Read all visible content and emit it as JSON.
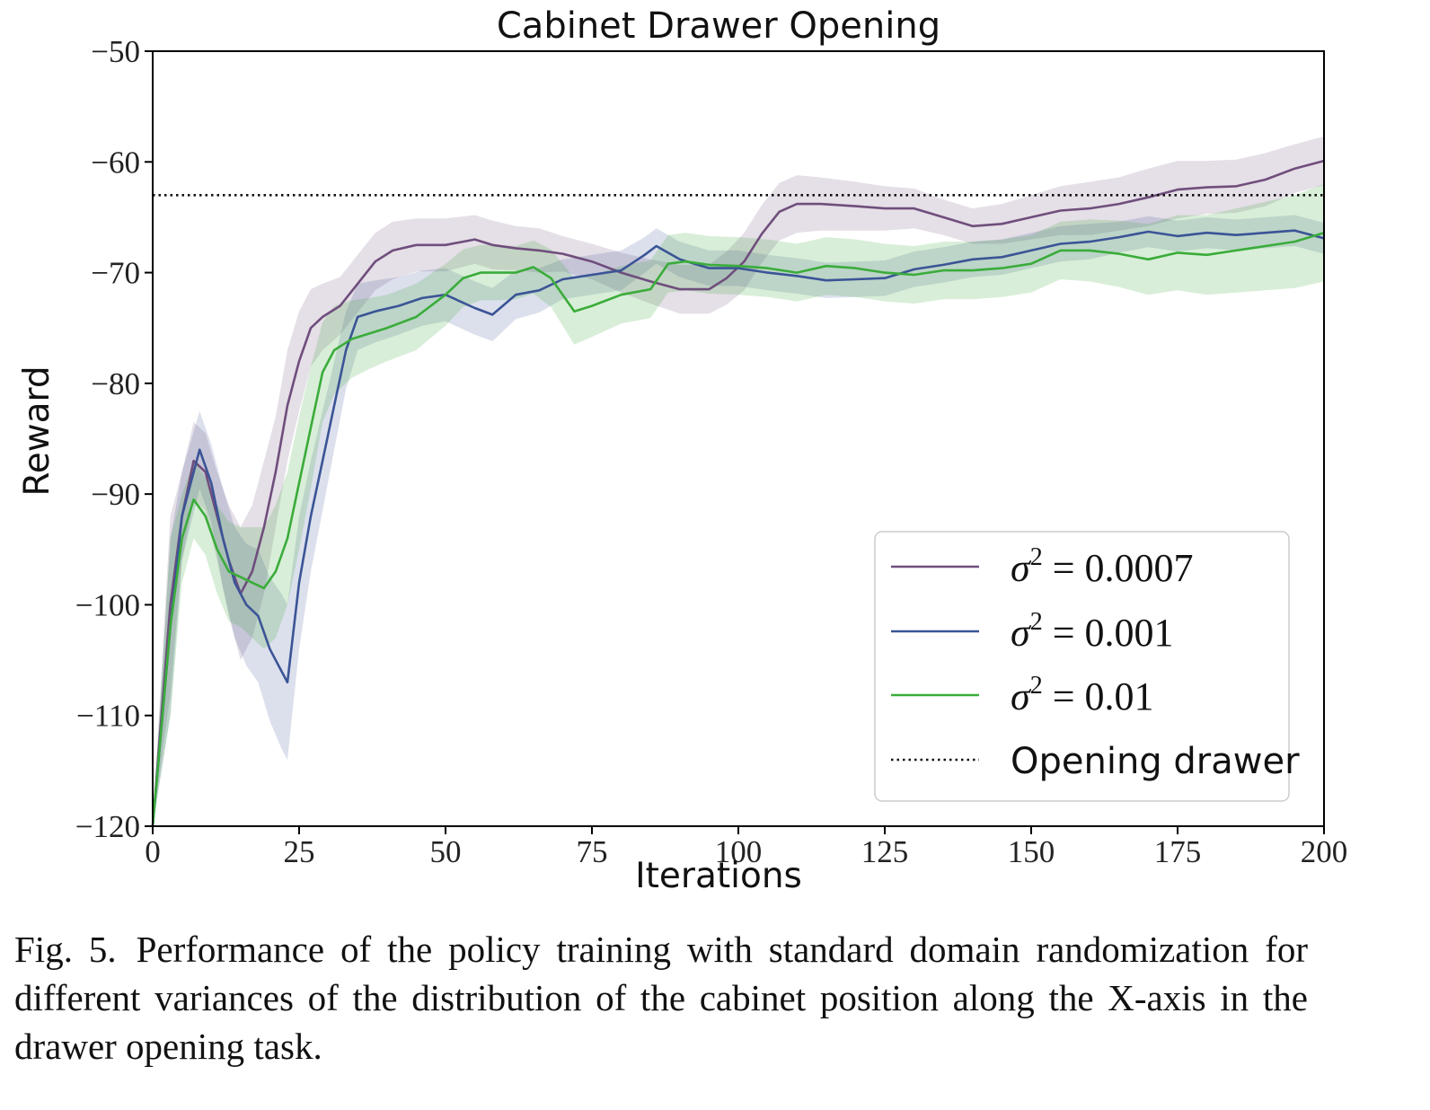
{
  "colors": {
    "series_0007": "#6f4e7c",
    "series_001": "#3b5496",
    "series_001_band": "#3b5496",
    "series_01": "#3aac3a",
    "reference": "#111111"
  },
  "caption": {
    "label": "Fig. 5.",
    "text": "Performance of the policy training with standard domain randomization for different variances of the distribution of the cabinet position along the X-axis in the drawer opening task."
  },
  "chart_data": {
    "type": "line",
    "title": "Cabinet Drawer Opening",
    "xlabel": "Iterations",
    "ylabel": "Reward",
    "xlim": [
      0,
      200
    ],
    "ylim": [
      -120,
      -50
    ],
    "xticks": [
      0,
      25,
      50,
      75,
      100,
      125,
      150,
      175,
      200
    ],
    "yticks": [
      -50,
      -60,
      -70,
      -80,
      -90,
      -100,
      -110,
      -120
    ],
    "ytick_labels": [
      "−50",
      "−60",
      "−70",
      "−80",
      "−90",
      "−100",
      "−110",
      "−120"
    ],
    "grid": false,
    "legend_position": "lower-right",
    "shaded_band": "spread around each series",
    "series": [
      {
        "name": "σ² = 0.0007",
        "legend_var": "σ",
        "legend_sup": "2",
        "legend_rest": " = 0.0007",
        "color_key": "series_0007",
        "x": [
          0,
          3,
          5,
          7,
          9,
          11,
          13,
          15,
          17,
          19,
          21,
          23,
          25,
          27,
          29,
          32,
          35,
          38,
          41,
          45,
          50,
          55,
          58,
          62,
          66,
          70,
          75,
          80,
          85,
          90,
          95,
          98,
          101,
          104,
          107,
          110,
          114,
          120,
          125,
          130,
          135,
          140,
          145,
          150,
          155,
          160,
          165,
          170,
          175,
          180,
          185,
          190,
          195,
          200
        ],
        "y": [
          -120,
          -100,
          -92,
          -87,
          -88,
          -92,
          -96,
          -99,
          -97,
          -93,
          -88,
          -82,
          -78,
          -75,
          -74,
          -73,
          -71,
          -69,
          -68,
          -67.5,
          -67.5,
          -67,
          -67.5,
          -67.8,
          -68,
          -68.3,
          -69,
          -70,
          -70.8,
          -71.5,
          -71.5,
          -70.5,
          -69,
          -66.5,
          -64.5,
          -63.8,
          -63.8,
          -64,
          -64.2,
          -64.2,
          -65,
          -65.8,
          -65.6,
          -65,
          -64.4,
          -64.2,
          -63.8,
          -63.2,
          -62.5,
          -62.3,
          -62.2,
          -61.6,
          -60.6,
          -59.9
        ],
        "spread": [
          0,
          8,
          4,
          3.5,
          3.5,
          4,
          5,
          6,
          6,
          6,
          5,
          5,
          4.5,
          3.5,
          3,
          2.6,
          2.6,
          2.6,
          2.6,
          2.4,
          2.4,
          2.2,
          2.2,
          2,
          2,
          1.6,
          1.6,
          1.8,
          2,
          2.2,
          2.2,
          2.4,
          2.6,
          2.6,
          2.6,
          2.6,
          2.4,
          2.2,
          2,
          1.8,
          1.6,
          1.6,
          1.8,
          2,
          2.2,
          2.4,
          2.4,
          2.6,
          2.6,
          2.4,
          2.4,
          2.4,
          2.2,
          2.2
        ]
      },
      {
        "name": "σ² = 0.001",
        "legend_var": "σ",
        "legend_sup": "2",
        "legend_rest": " = 0.001",
        "color_key": "series_001",
        "x": [
          0,
          3,
          5,
          8,
          10,
          12,
          14,
          16,
          18,
          20,
          22,
          23,
          25,
          27,
          29,
          31,
          33,
          35,
          38,
          42,
          46,
          50,
          55,
          58,
          62,
          66,
          70,
          75,
          80,
          84,
          86,
          90,
          95,
          100,
          105,
          110,
          115,
          120,
          125,
          130,
          135,
          140,
          145,
          150,
          155,
          160,
          165,
          170,
          175,
          180,
          185,
          190,
          195,
          200
        ],
        "y": [
          -120,
          -102,
          -92,
          -86,
          -89,
          -94,
          -98,
          -100,
          -101,
          -104,
          -106,
          -107,
          -98,
          -92,
          -87,
          -82,
          -77,
          -74,
          -73.5,
          -73,
          -72.3,
          -72,
          -73.2,
          -73.8,
          -72,
          -71.6,
          -70.6,
          -70.2,
          -69.8,
          -68.4,
          -67.6,
          -68.8,
          -69.6,
          -69.6,
          -70,
          -70.3,
          -70.7,
          -70.6,
          -70.5,
          -69.7,
          -69.3,
          -68.8,
          -68.6,
          -68,
          -67.4,
          -67.2,
          -66.8,
          -66.3,
          -66.7,
          -66.4,
          -66.6,
          -66.4,
          -66.2,
          -66.9
        ],
        "spread": [
          0,
          8,
          4,
          3.5,
          3.5,
          4.5,
          5,
          5.5,
          6,
          6.5,
          7,
          7,
          6,
          5,
          4.5,
          4,
          3.5,
          3,
          2.8,
          2.6,
          2.5,
          2.4,
          2.4,
          2.4,
          2.2,
          2,
          1.8,
          1.8,
          1.8,
          1.6,
          1.6,
          1.6,
          1.6,
          1.6,
          1.6,
          1.6,
          1.6,
          1.6,
          1.6,
          1.6,
          1.6,
          1.6,
          1.6,
          1.6,
          1.6,
          1.6,
          1.4,
          1.4,
          1.4,
          1.4,
          1.4,
          1.4,
          1.4,
          1.4
        ]
      },
      {
        "name": "σ² = 0.01",
        "legend_var": "σ",
        "legend_sup": "2",
        "legend_rest": " = 0.01",
        "color_key": "series_01",
        "x": [
          0,
          3,
          5,
          7,
          9,
          11,
          13,
          15,
          17,
          19,
          21,
          23,
          25,
          27,
          29,
          31,
          34,
          37,
          40,
          45,
          50,
          53,
          56,
          59,
          62,
          65,
          68,
          70,
          72,
          75,
          80,
          85,
          88,
          91,
          95,
          100,
          105,
          110,
          115,
          120,
          125,
          130,
          135,
          140,
          145,
          150,
          155,
          160,
          165,
          170,
          175,
          180,
          185,
          190,
          195,
          200
        ],
        "y": [
          -120,
          -102,
          -94,
          -90.5,
          -92,
          -95,
          -97,
          -97.5,
          -98,
          -98.5,
          -97,
          -94,
          -89,
          -84,
          -79,
          -77,
          -76,
          -75.5,
          -75,
          -74,
          -72,
          -70.5,
          -70,
          -70,
          -70,
          -69.5,
          -70.5,
          -72,
          -73.5,
          -73,
          -72,
          -71.5,
          -69.2,
          -69,
          -69.3,
          -69.4,
          -69.6,
          -70,
          -69.4,
          -69.6,
          -70,
          -70.2,
          -69.8,
          -69.8,
          -69.6,
          -69.2,
          -68,
          -68,
          -68.3,
          -68.8,
          -68.2,
          -68.4,
          -68,
          -67.6,
          -67.2,
          -66.4
        ],
        "spread": [
          0,
          8,
          4,
          3.5,
          3.5,
          4,
          4.5,
          4.5,
          5,
          5.5,
          6,
          6,
          6,
          5.5,
          4.5,
          4,
          3.5,
          3.2,
          3,
          3,
          2.8,
          2.6,
          2.5,
          2.5,
          2.4,
          2.4,
          2.6,
          2.8,
          3,
          2.8,
          2.6,
          2.6,
          2.6,
          2.6,
          2.6,
          2.6,
          2.6,
          2.6,
          2.6,
          2.6,
          2.6,
          2.6,
          2.6,
          2.6,
          2.6,
          2.6,
          2.6,
          2.8,
          3,
          3.2,
          3.4,
          3.6,
          3.8,
          4,
          4.2,
          4.4
        ]
      }
    ],
    "reference_line": {
      "name": "Opening drawer",
      "y": -63,
      "style": "dotted"
    }
  }
}
